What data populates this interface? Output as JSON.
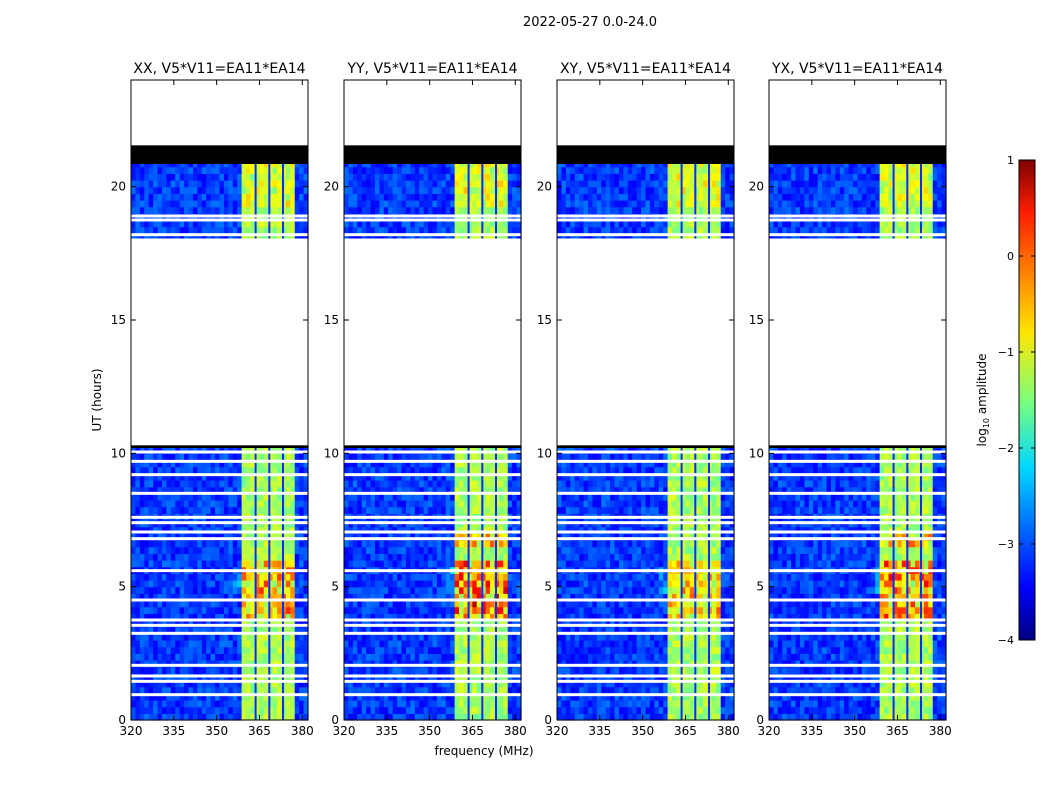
{
  "chart_data": {
    "type": "heatmap",
    "suptitle": "2022-05-27 0.0-24.0",
    "xlabel": "frequency (MHz)",
    "ylabel": "UT (hours)",
    "xlim": [
      320,
      382
    ],
    "ylim": [
      0,
      24
    ],
    "xticks": [
      320,
      335,
      350,
      365,
      380
    ],
    "yticks": [
      0,
      5,
      10,
      15,
      20
    ],
    "panels": [
      {
        "title": "XX, V5*V11=EA11*EA14",
        "peak": 0.55
      },
      {
        "title": "YY, V5*V11=EA11*EA14",
        "peak": 0.85
      },
      {
        "title": "XY, V5*V11=EA11*EA14",
        "peak": 0.45
      },
      {
        "title": "YX, V5*V11=EA11*EA14",
        "peak": 0.75
      }
    ],
    "bright_band_mhz": [
      359,
      378
    ],
    "band_channels_mhz": [
      [
        359.2,
        363.3
      ],
      [
        364.0,
        368.1
      ],
      [
        368.8,
        372.9
      ],
      [
        373.6,
        377.7
      ]
    ],
    "no_data_hours": [
      [
        10.3,
        18.0
      ],
      [
        21.7,
        24.0
      ]
    ],
    "flagged_hours": [
      [
        20.85,
        21.55
      ],
      [
        10.2,
        10.35
      ]
    ],
    "gap_hours": [
      0.95,
      1.45,
      1.65,
      2.05,
      3.25,
      3.55,
      3.75,
      4.5,
      5.6,
      6.8,
      7.05,
      7.4,
      7.6,
      8.5,
      9.2,
      9.7,
      10.05,
      18.0,
      18.2,
      18.75,
      18.9
    ],
    "colorbar": {
      "label": "log",
      "label_sub": "10",
      "label_suffix": " amplitude",
      "range": [
        -4,
        1
      ],
      "ticks": [
        1,
        0,
        -1,
        -2,
        -3,
        -4
      ]
    }
  }
}
